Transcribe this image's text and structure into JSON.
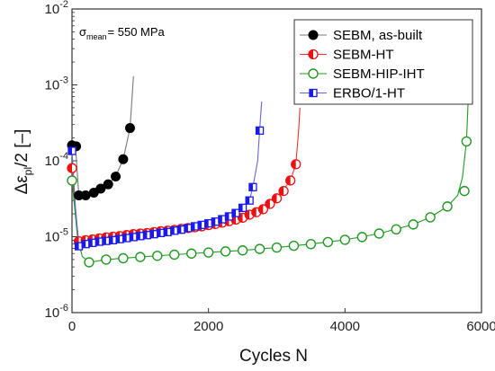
{
  "chart_data": {
    "type": "scatter",
    "y_scale": "log",
    "xlim": [
      0,
      6000
    ],
    "ylim": [
      1e-06,
      0.01
    ],
    "x_ticks": [
      {
        "value": 0,
        "label": "0"
      },
      {
        "value": 2000,
        "label": "2000"
      },
      {
        "value": 4000,
        "label": "4000"
      },
      {
        "value": 6000,
        "label": "6000"
      }
    ],
    "y_ticks": [
      {
        "value": 1e-06,
        "mantissa": "10",
        "exponent": "-6"
      },
      {
        "value": 1e-05,
        "mantissa": "10",
        "exponent": "-5"
      },
      {
        "value": 0.0001,
        "mantissa": "10",
        "exponent": "-4"
      },
      {
        "value": 0.001,
        "mantissa": "10",
        "exponent": "-3"
      },
      {
        "value": 0.01,
        "mantissa": "10",
        "exponent": "-2"
      }
    ],
    "xlabel": "Cycles N",
    "ylabel": {
      "prefix": "Δε",
      "subscript": "pl",
      "suffix": "/2 [–]"
    },
    "annotation": {
      "symbol": "σ",
      "subscript": "mean",
      "text": "= 550 MPa"
    },
    "legend_position": "top-right",
    "grid": false,
    "series": [
      {
        "name": "SEBM, as-built",
        "color": "#000000",
        "marker": "filled-circle",
        "curve_color": "#777777",
        "points": [
          [
            0,
            0.00016
          ],
          [
            60,
            0.000155
          ],
          [
            100,
            3.5e-05
          ],
          [
            200,
            3.5e-05
          ],
          [
            320,
            3.8e-05
          ],
          [
            420,
            4.3e-05
          ],
          [
            530,
            4.9e-05
          ],
          [
            640,
            6.2e-05
          ],
          [
            750,
            0.000105
          ],
          [
            850,
            0.00027
          ]
        ],
        "curve": [
          [
            0,
            0.00016
          ],
          [
            60,
            0.00012
          ],
          [
            100,
            3.5e-05
          ],
          [
            200,
            3.5e-05
          ],
          [
            320,
            3.8e-05
          ],
          [
            420,
            4.3e-05
          ],
          [
            530,
            4.9e-05
          ],
          [
            640,
            6.2e-05
          ],
          [
            750,
            0.000105
          ],
          [
            850,
            0.00027
          ],
          [
            900,
            0.0013
          ]
        ]
      },
      {
        "name": "SEBM-HT",
        "color": "#ee1111",
        "marker": "half-filled-circle",
        "curve_color": "#ee3333",
        "points": [
          [
            0,
            8e-05
          ],
          [
            100,
            8.7e-06
          ],
          [
            200,
            9e-06
          ],
          [
            300,
            9.2e-06
          ],
          [
            400,
            9.5e-06
          ],
          [
            500,
            9.8e-06
          ],
          [
            600,
            1e-05
          ],
          [
            700,
            1.02e-05
          ],
          [
            800,
            1.05e-05
          ],
          [
            900,
            1.08e-05
          ],
          [
            1000,
            1.1e-05
          ],
          [
            1100,
            1.12e-05
          ],
          [
            1200,
            1.15e-05
          ],
          [
            1300,
            1.18e-05
          ],
          [
            1400,
            1.2e-05
          ],
          [
            1500,
            1.23e-05
          ],
          [
            1600,
            1.27e-05
          ],
          [
            1700,
            1.3e-05
          ],
          [
            1800,
            1.33e-05
          ],
          [
            1900,
            1.37e-05
          ],
          [
            2000,
            1.42e-05
          ],
          [
            2100,
            1.47e-05
          ],
          [
            2200,
            1.53e-05
          ],
          [
            2300,
            1.6e-05
          ],
          [
            2400,
            1.68e-05
          ],
          [
            2500,
            1.78e-05
          ],
          [
            2600,
            1.95e-05
          ],
          [
            2700,
            2.1e-05
          ],
          [
            2800,
            2.3e-05
          ],
          [
            2900,
            2.7e-05
          ],
          [
            3000,
            3.2e-05
          ],
          [
            3100,
            4e-05
          ],
          [
            3200,
            5.5e-05
          ],
          [
            3280,
            9e-05
          ]
        ],
        "curve": [
          [
            0,
            8e-05
          ],
          [
            50,
            2e-05
          ],
          [
            100,
            8.7e-06
          ],
          [
            200,
            9e-06
          ],
          [
            400,
            9.5e-06
          ],
          [
            700,
            1.02e-05
          ],
          [
            1000,
            1.1e-05
          ],
          [
            1300,
            1.18e-05
          ],
          [
            1600,
            1.27e-05
          ],
          [
            1900,
            1.37e-05
          ],
          [
            2200,
            1.53e-05
          ],
          [
            2500,
            1.78e-05
          ],
          [
            2800,
            2.3e-05
          ],
          [
            3000,
            3.2e-05
          ],
          [
            3200,
            5.5e-05
          ],
          [
            3280,
            9e-05
          ],
          [
            3320,
            0.00025
          ],
          [
            3340,
            0.0005
          ]
        ]
      },
      {
        "name": "SEBM-HIP-IHT",
        "color": "#229922",
        "marker": "open-circle",
        "curve_color": "#229922",
        "points": [
          [
            0,
            5.5e-05
          ],
          [
            250,
            4.6e-06
          ],
          [
            500,
            5e-06
          ],
          [
            750,
            5.2e-06
          ],
          [
            1000,
            5.4e-06
          ],
          [
            1250,
            5.6e-06
          ],
          [
            1500,
            5.8e-06
          ],
          [
            1750,
            6e-06
          ],
          [
            2000,
            6.2e-06
          ],
          [
            2250,
            6.4e-06
          ],
          [
            2500,
            6.6e-06
          ],
          [
            2750,
            6.9e-06
          ],
          [
            3000,
            7.2e-06
          ],
          [
            3250,
            7.6e-06
          ],
          [
            3500,
            8e-06
          ],
          [
            3750,
            8.5e-06
          ],
          [
            4000,
            9.1e-06
          ],
          [
            4250,
            9.9e-06
          ],
          [
            4500,
            1.1e-05
          ],
          [
            4750,
            1.25e-05
          ],
          [
            5000,
            1.45e-05
          ],
          [
            5250,
            1.8e-05
          ],
          [
            5500,
            2.5e-05
          ],
          [
            5750,
            4e-05
          ],
          [
            5780,
            0.00018
          ]
        ],
        "curve": [
          [
            0,
            5.5e-05
          ],
          [
            80,
            1e-05
          ],
          [
            150,
            5.5e-06
          ],
          [
            250,
            4.6e-06
          ],
          [
            500,
            5e-06
          ],
          [
            1000,
            5.4e-06
          ],
          [
            1500,
            5.8e-06
          ],
          [
            2000,
            6.2e-06
          ],
          [
            2500,
            6.6e-06
          ],
          [
            3000,
            7.2e-06
          ],
          [
            3500,
            8e-06
          ],
          [
            4000,
            9.1e-06
          ],
          [
            4500,
            1.1e-05
          ],
          [
            5000,
            1.45e-05
          ],
          [
            5250,
            1.8e-05
          ],
          [
            5500,
            2.5e-05
          ],
          [
            5650,
            3.5e-05
          ],
          [
            5720,
            6e-05
          ],
          [
            5780,
            0.00018
          ],
          [
            5810,
            0.0008
          ]
        ]
      },
      {
        "name": "ERBO/1-HT",
        "color": "#1a1aee",
        "marker": "half-filled-square",
        "curve_color": "#6666dd",
        "points": [
          [
            0,
            0.000135
          ],
          [
            100,
            7.5e-06
          ],
          [
            200,
            8e-06
          ],
          [
            300,
            8.3e-06
          ],
          [
            400,
            8.6e-06
          ],
          [
            500,
            8.8e-06
          ],
          [
            600,
            9e-06
          ],
          [
            700,
            9.3e-06
          ],
          [
            800,
            9.6e-06
          ],
          [
            900,
            9.9e-06
          ],
          [
            1000,
            1.02e-05
          ],
          [
            1100,
            1.05e-05
          ],
          [
            1200,
            1.08e-05
          ],
          [
            1300,
            1.12e-05
          ],
          [
            1400,
            1.15e-05
          ],
          [
            1500,
            1.2e-05
          ],
          [
            1600,
            1.24e-05
          ],
          [
            1700,
            1.3e-05
          ],
          [
            1800,
            1.37e-05
          ],
          [
            1900,
            1.43e-05
          ],
          [
            2000,
            1.5e-05
          ],
          [
            2100,
            1.58e-05
          ],
          [
            2200,
            1.7e-05
          ],
          [
            2300,
            1.85e-05
          ],
          [
            2400,
            2.05e-05
          ],
          [
            2500,
            2.4e-05
          ],
          [
            2600,
            3e-05
          ],
          [
            2650,
            4.5e-05
          ],
          [
            2750,
            0.00025
          ]
        ],
        "curve": [
          [
            0,
            0.000135
          ],
          [
            50,
            2.5e-05
          ],
          [
            100,
            7.5e-06
          ],
          [
            200,
            8e-06
          ],
          [
            500,
            8.8e-06
          ],
          [
            800,
            9.6e-06
          ],
          [
            1100,
            1.05e-05
          ],
          [
            1400,
            1.15e-05
          ],
          [
            1700,
            1.3e-05
          ],
          [
            2000,
            1.5e-05
          ],
          [
            2300,
            1.85e-05
          ],
          [
            2500,
            2.4e-05
          ],
          [
            2600,
            3e-05
          ],
          [
            2650,
            4.5e-05
          ],
          [
            2720,
            0.0001
          ],
          [
            2760,
            0.00035
          ],
          [
            2780,
            0.0006
          ]
        ]
      }
    ]
  }
}
